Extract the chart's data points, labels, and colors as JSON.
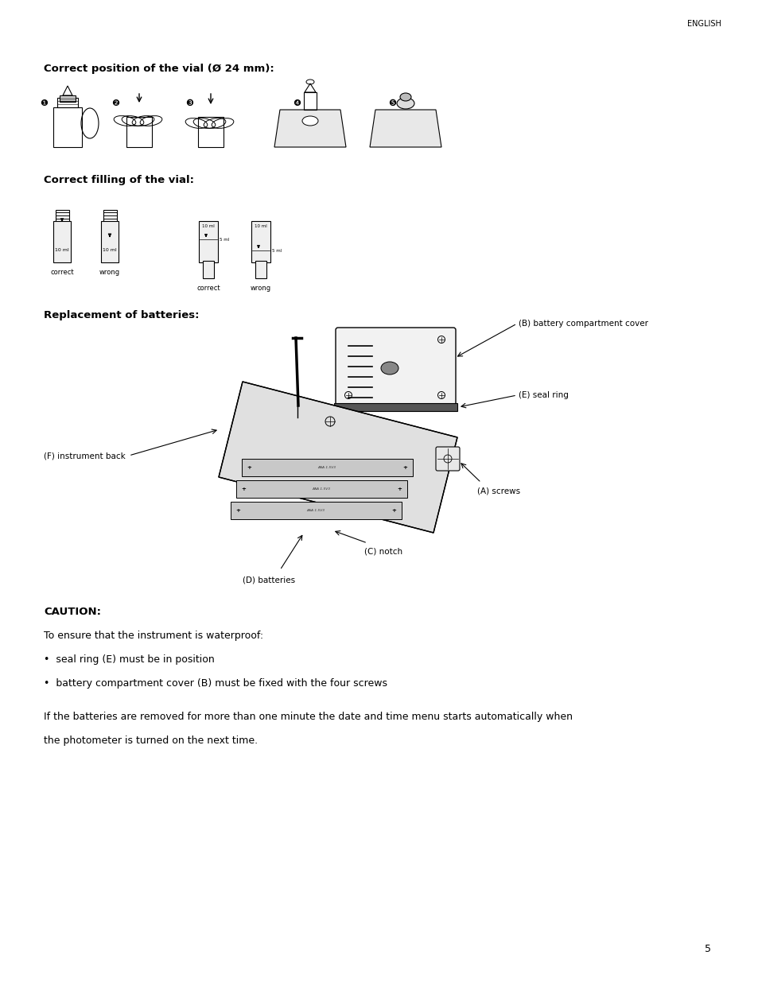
{
  "bg_color": "#ffffff",
  "text_color": "#000000",
  "page_width": 9.54,
  "page_height": 12.35,
  "header_text": "ENGLISH",
  "section1_title": "Correct position of the vial (Ø 24 mm):",
  "section2_title": "Correct filling of the vial:",
  "section3_title": "Replacement of batteries:",
  "label_b": "(B) battery compartment cover",
  "label_e": "(E) seal ring",
  "label_f": "(F) instrument back",
  "label_a": "(A) screws",
  "label_c": "(C) notch",
  "label_d": "(D) batteries",
  "caution_title": "CAUTION:",
  "caution_line1": "To ensure that the instrument is waterproof:",
  "caution_bullet1": "•  seal ring (E) must be in position",
  "caution_bullet2": "•  battery compartment cover (B) must be fixed with the four screws",
  "caution_line2": "If the batteries are removed for more than one minute the date and time menu starts automatically when",
  "caution_line3": "the photometer is turned on the next time.",
  "page_number": "5",
  "correct1": "correct",
  "wrong1": "wrong",
  "correct2": "correct",
  "wrong2": "wrong",
  "vial_label1": "10 ml",
  "vial_label2": "10 ml",
  "vial_label3": "10 ml",
  "vial_label4": "10 ml",
  "vial_label3b": "5 ml"
}
